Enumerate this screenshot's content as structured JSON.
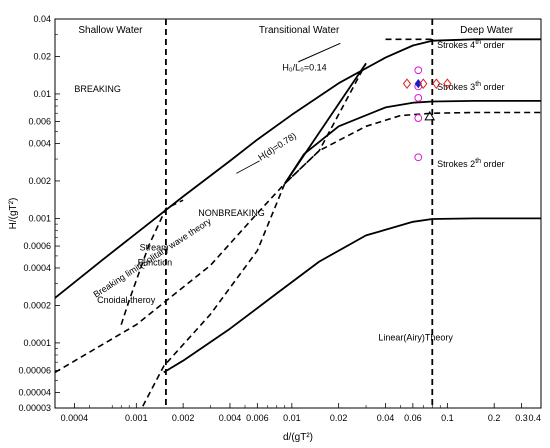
{
  "chart_data": {
    "type": "line",
    "scale": {
      "x": "log",
      "y": "log"
    },
    "xlim": [
      0.0003,
      0.4
    ],
    "ylim": [
      3e-05,
      0.04
    ],
    "xlabel": "d/(gT²)",
    "ylabel": "H/(gT²)",
    "x_ticks": [
      {
        "v": 0.0004,
        "label": "0.0004"
      },
      {
        "v": 0.001,
        "label": "0.001"
      },
      {
        "v": 0.002,
        "label": "0.002"
      },
      {
        "v": 0.004,
        "label": "0.004"
      },
      {
        "v": 0.006,
        "label": "0.006"
      },
      {
        "v": 0.01,
        "label": "0.01"
      },
      {
        "v": 0.02,
        "label": "0.02"
      },
      {
        "v": 0.04,
        "label": "0.04"
      },
      {
        "v": 0.06,
        "label": "0.06"
      },
      {
        "v": 0.1,
        "label": "0.1"
      },
      {
        "v": 0.2,
        "label": "0.2"
      },
      {
        "v": 0.3,
        "label": "0.3"
      },
      {
        "v": 0.4,
        "label": "0.4"
      }
    ],
    "y_ticks": [
      {
        "v": 0.04,
        "label": "0.04"
      },
      {
        "v": 0.02,
        "label": "0.02"
      },
      {
        "v": 0.01,
        "label": "0.01"
      },
      {
        "v": 0.006,
        "label": "0.006"
      },
      {
        "v": 0.004,
        "label": "0.004"
      },
      {
        "v": 0.002,
        "label": "0.002"
      },
      {
        "v": 0.001,
        "label": "0.001"
      },
      {
        "v": 0.0006,
        "label": "0.0006"
      },
      {
        "v": 0.0004,
        "label": "0.0004"
      },
      {
        "v": 0.0002,
        "label": "0.0002"
      },
      {
        "v": 0.0001,
        "label": "0.0001"
      },
      {
        "v": 6e-05,
        "label": "0.00006"
      },
      {
        "v": 4e-05,
        "label": "0.00004"
      },
      {
        "v": 3e-05,
        "label": "0.00003"
      }
    ],
    "region_boundaries": [
      {
        "x": 0.00155,
        "style": "dashed"
      },
      {
        "x": 0.08,
        "style": "dashed"
      }
    ],
    "regions": [
      {
        "label": "Shallow Water"
      },
      {
        "label": "Transitional Water"
      },
      {
        "label": "Deep Water"
      }
    ],
    "series": [
      {
        "style": "solid",
        "x": [
          0.0003,
          0.0006,
          0.001,
          0.002,
          0.004,
          0.006,
          0.01,
          0.02,
          0.04,
          0.06,
          0.08,
          0.15,
          0.4
        ],
        "y": [
          0.00023,
          0.00046,
          0.00076,
          0.0015,
          0.0029,
          0.0043,
          0.0068,
          0.0122,
          0.0196,
          0.0245,
          0.0268,
          0.0275,
          0.0275
        ]
      },
      {
        "style": "solid",
        "x": [
          0.009,
          0.012,
          0.02,
          0.04,
          0.06,
          0.08,
          0.15,
          0.4
        ],
        "y": [
          0.0019,
          0.0033,
          0.0055,
          0.0078,
          0.0085,
          0.0087,
          0.0088,
          0.0088
        ]
      },
      {
        "style": "dashed",
        "x": [
          0.0003,
          0.001,
          0.003,
          0.006,
          0.009,
          0.015,
          0.03,
          0.05,
          0.08,
          0.15,
          0.4
        ],
        "y": [
          5.8e-05,
          0.00014,
          0.00042,
          0.0011,
          0.0019,
          0.0035,
          0.0055,
          0.0067,
          0.007,
          0.0071,
          0.0071
        ]
      },
      {
        "style": "solid",
        "x": [
          0.0015,
          0.002,
          0.004,
          0.008,
          0.015,
          0.03,
          0.06,
          0.08,
          0.15,
          0.4
        ],
        "y": [
          5.8e-05,
          7.2e-05,
          0.00013,
          0.00025,
          0.00045,
          0.00073,
          0.00094,
          0.00099,
          0.001,
          0.001
        ]
      },
      {
        "style": "solid",
        "x": [
          0.009,
          0.03
        ],
        "y": [
          0.0019,
          0.0176
        ]
      },
      {
        "style": "dashed",
        "x": [
          0.0011,
          0.0015,
          0.003,
          0.006,
          0.009,
          0.015,
          0.03
        ],
        "y": [
          3.1e-05,
          6.5e-05,
          0.00017,
          0.00055,
          0.0019,
          0.0035,
          0.0176
        ]
      },
      {
        "style": "dashed",
        "x": [
          0.0008,
          0.0009,
          0.0012,
          0.00155,
          0.002
        ],
        "y": [
          0.00014,
          0.00022,
          0.0006,
          0.0012,
          0.0014
        ]
      },
      {
        "style": "dashed",
        "x": [
          0.04,
          0.08
        ],
        "y": [
          0.0275,
          0.0275
        ]
      }
    ],
    "markers": [
      {
        "shape": "circle",
        "color": "#d41fd4",
        "x": 0.065,
        "y": 0.0155
      },
      {
        "shape": "circle",
        "color": "#d41fd4",
        "x": 0.065,
        "y": 0.0115
      },
      {
        "shape": "circle",
        "color": "#d41fd4",
        "x": 0.065,
        "y": 0.0093
      },
      {
        "shape": "circle",
        "color": "#d41fd4",
        "x": 0.065,
        "y": 0.0064
      },
      {
        "shape": "circle",
        "color": "#d41fd4",
        "x": 0.065,
        "y": 0.0031
      },
      {
        "shape": "filled-diamond",
        "color": "#1a1acc",
        "x": 0.065,
        "y": 0.0121
      },
      {
        "shape": "diamond",
        "color": "#e02020",
        "x": 0.055,
        "y": 0.0121
      },
      {
        "shape": "diamond",
        "color": "#e02020",
        "x": 0.07,
        "y": 0.0121
      },
      {
        "shape": "diamond",
        "color": "#e02020",
        "x": 0.085,
        "y": 0.0121
      },
      {
        "shape": "diamond",
        "color": "#e02020",
        "x": 0.1,
        "y": 0.0121
      },
      {
        "shape": "triangle",
        "color": "#000000",
        "x": 0.077,
        "y": 0.0066
      }
    ],
    "annotations": [
      {
        "text": "BREAKING",
        "x": 0.0004,
        "y": 0.0104
      },
      {
        "text": "NONBREAKING",
        "x": 0.0025,
        "y": 0.00105
      },
      {
        "text": "Stream",
        "x": 0.00105,
        "y": 0.00055
      },
      {
        "text": "Function",
        "x": 0.00102,
        "y": 0.00042
      },
      {
        "text": "Cnoidal theroy",
        "x": 0.00056,
        "y": 0.00021
      },
      {
        "text": "Linear(Airy)Theory",
        "x": 0.036,
        "y": 0.000105
      },
      {
        "text": "H(d)=0.78)",
        "x": 0.0063,
        "y": 0.0029
      },
      {
        "text": "Breaking limit(Solitary wave theory",
        "x": 0.00055,
        "y": 0.00023
      }
    ],
    "wave_order_labels": [
      {
        "pre": "Strokes 4",
        "sup": "th",
        "post": " order",
        "x": 0.086,
        "y": 0.0235
      },
      {
        "pre": "Strokes 3",
        "sup": "th",
        "post": " order",
        "x": 0.086,
        "y": 0.0108
      },
      {
        "pre": "Strokes 2",
        "sup": "th",
        "post": " order",
        "x": 0.086,
        "y": 0.0026
      }
    ],
    "steepness_label": {
      "text": "H₀/L₀=0.14",
      "x": 0.0087,
      "y": 0.0155
    }
  }
}
